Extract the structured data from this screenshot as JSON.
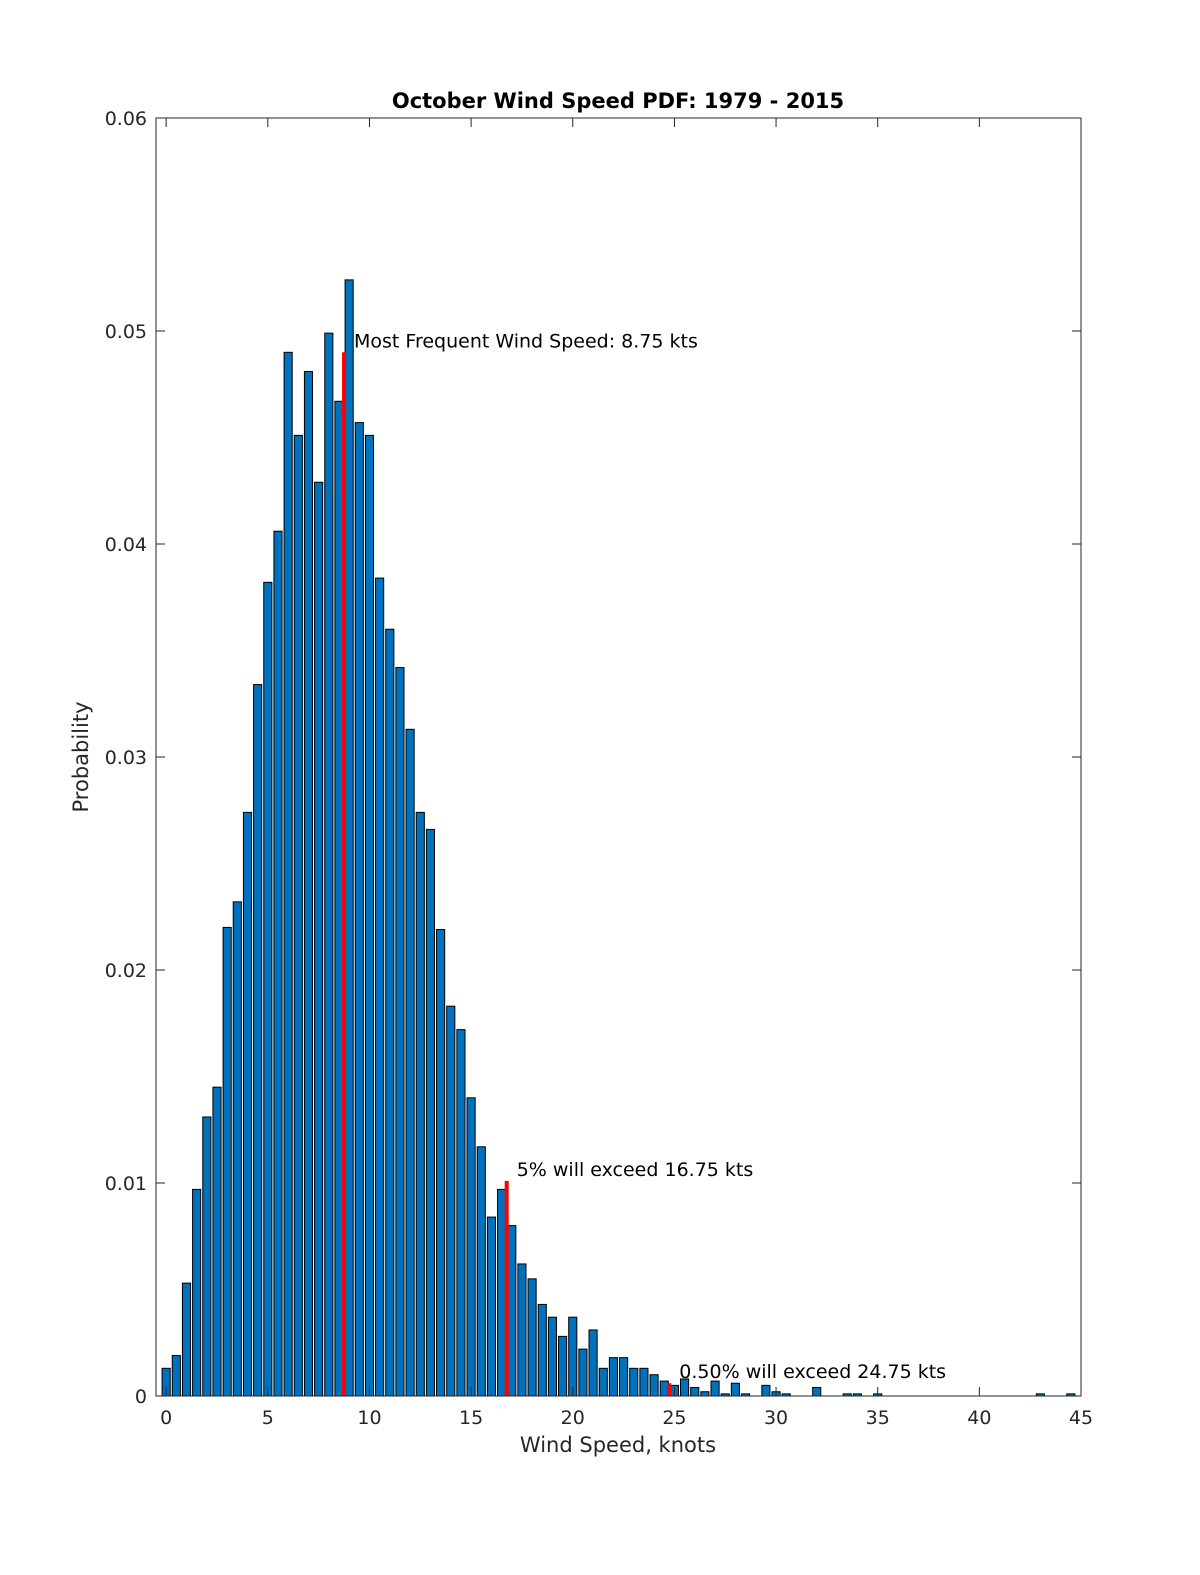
{
  "chart_data": {
    "type": "bar",
    "title": "October Wind Speed PDF: 1979 - 2015",
    "xlabel": "Wind Speed, knots",
    "ylabel": "Probability",
    "xlim": [
      -0.5,
      45
    ],
    "ylim": [
      0,
      0.06
    ],
    "xticks": [
      0,
      5,
      10,
      15,
      20,
      25,
      30,
      35,
      40,
      45
    ],
    "yticks": [
      0,
      0.01,
      0.02,
      0.03,
      0.04,
      0.05,
      0.06
    ],
    "ytick_labels": [
      "0",
      "0.01",
      "0.02",
      "0.03",
      "0.04",
      "0.05",
      "0.06"
    ],
    "bar_width": 0.4,
    "bar_color": "#0072BD",
    "marker_color": "#FF0000",
    "grid": false,
    "x": [
      0,
      0.5,
      1,
      1.5,
      2,
      2.5,
      3,
      3.5,
      4,
      4.5,
      5,
      5.5,
      6,
      6.5,
      7,
      7.5,
      8,
      8.5,
      9,
      9.5,
      10,
      10.5,
      11,
      11.5,
      12,
      12.5,
      13,
      13.5,
      14,
      14.5,
      15,
      15.5,
      16,
      16.5,
      17,
      17.5,
      18,
      18.5,
      19,
      19.5,
      20,
      20.5,
      21,
      21.5,
      22,
      22.5,
      23,
      23.5,
      24,
      24.5,
      25,
      25.5,
      26,
      26.5,
      27,
      27.5,
      28,
      28.5,
      29,
      29.5,
      30,
      30.5,
      31,
      31.5,
      32,
      32.5,
      33,
      33.5,
      34,
      34.5,
      35,
      35.5,
      36,
      36.5,
      37,
      37.5,
      38,
      38.5,
      39,
      39.5,
      40,
      40.5,
      41,
      41.5,
      42,
      42.5,
      43,
      43.5,
      44,
      44.5
    ],
    "values": [
      0.0013,
      0.0019,
      0.0053,
      0.0097,
      0.0131,
      0.0145,
      0.022,
      0.0232,
      0.0274,
      0.0334,
      0.0382,
      0.0406,
      0.049,
      0.0451,
      0.0481,
      0.0429,
      0.0499,
      0.0467,
      0.0524,
      0.0457,
      0.0451,
      0.0384,
      0.036,
      0.0342,
      0.0313,
      0.0274,
      0.0266,
      0.0219,
      0.0183,
      0.0172,
      0.014,
      0.0117,
      0.0084,
      0.0097,
      0.008,
      0.0062,
      0.0055,
      0.0043,
      0.0037,
      0.0028,
      0.0037,
      0.0022,
      0.0031,
      0.0013,
      0.0018,
      0.0018,
      0.0013,
      0.0013,
      0.001,
      0.0007,
      0.0005,
      0.0008,
      0.0004,
      0.0002,
      0.0007,
      0.0001,
      0.0006,
      0.0001,
      0.0,
      0.0005,
      0.0002,
      0.0001,
      0.0,
      0.0,
      0.0004,
      0.0,
      0.0,
      0.0001,
      0.0001,
      0.0,
      0.0001,
      0.0,
      0.0,
      0.0,
      0.0,
      0.0,
      0.0,
      0.0,
      0.0,
      0.0,
      0.0,
      0.0,
      0.0,
      0.0,
      0.0,
      0.0,
      0.0001,
      0.0,
      0.0,
      0.0001
    ],
    "markers": [
      {
        "x": 8.75,
        "y": 0.049,
        "label": "Most Frequent Wind Speed: 8.75 kts"
      },
      {
        "x": 16.75,
        "y": 0.0101,
        "label": "5% will exceed 16.75 kts"
      },
      {
        "x": 24.75,
        "y": 0.0006,
        "label": "0.50% will exceed 24.75 kts"
      }
    ]
  }
}
